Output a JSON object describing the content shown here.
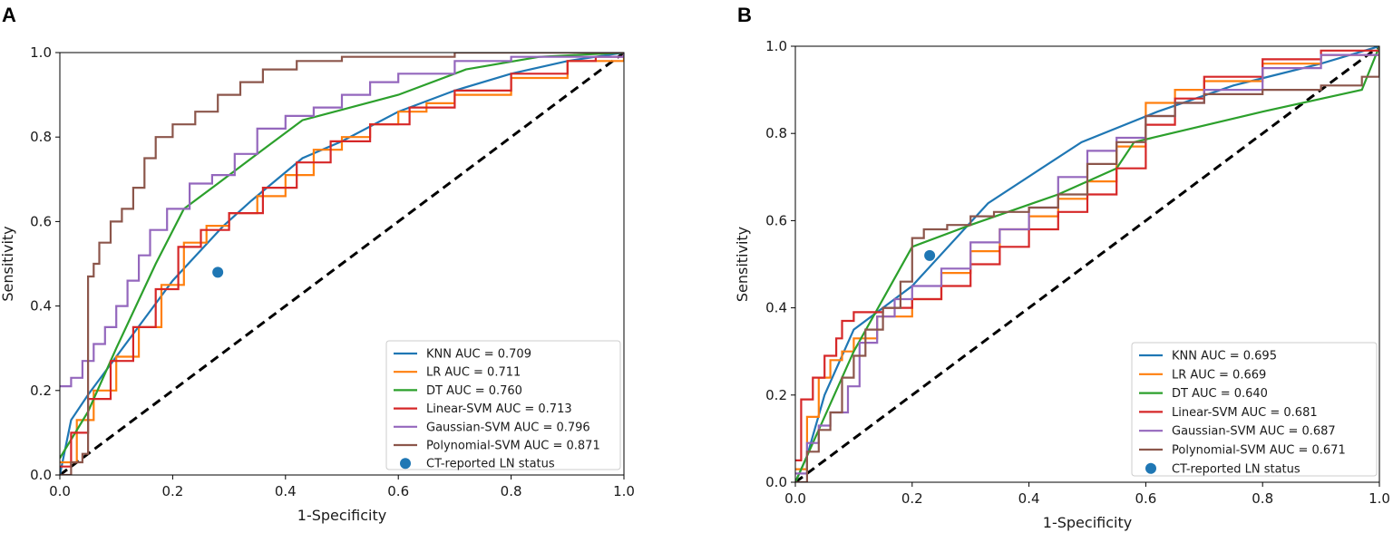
{
  "chart_data": [
    {
      "panel_label": "A",
      "type": "line",
      "xlabel": "1-Specificity",
      "ylabel": "Sensitivity",
      "xlim": [
        0,
        1
      ],
      "ylim": [
        0,
        1
      ],
      "xticks": [
        "0.0",
        "0.2",
        "0.4",
        "0.6",
        "0.8",
        "1.0"
      ],
      "yticks": [
        "0.0",
        "0.2",
        "0.4",
        "0.6",
        "0.8",
        "1.0"
      ],
      "legend_position": "lower-right",
      "series": [
        {
          "name": "KNN AUC = 0.709",
          "color": "#1f77b4",
          "step": false,
          "points": [
            [
              0,
              0
            ],
            [
              0.02,
              0.13
            ],
            [
              0.05,
              0.19
            ],
            [
              0.1,
              0.28
            ],
            [
              0.15,
              0.37
            ],
            [
              0.2,
              0.46
            ],
            [
              0.29,
              0.59
            ],
            [
              0.34,
              0.65
            ],
            [
              0.43,
              0.75
            ],
            [
              0.5,
              0.79
            ],
            [
              0.6,
              0.86
            ],
            [
              0.7,
              0.91
            ],
            [
              0.8,
              0.95
            ],
            [
              0.9,
              0.98
            ],
            [
              1,
              1
            ]
          ]
        },
        {
          "name": "LR AUC = 0.711",
          "color": "#ff7f0e",
          "step": true,
          "points": [
            [
              0,
              0.03
            ],
            [
              0.03,
              0.13
            ],
            [
              0.06,
              0.2
            ],
            [
              0.1,
              0.28
            ],
            [
              0.14,
              0.35
            ],
            [
              0.18,
              0.45
            ],
            [
              0.22,
              0.55
            ],
            [
              0.26,
              0.59
            ],
            [
              0.3,
              0.62
            ],
            [
              0.35,
              0.66
            ],
            [
              0.4,
              0.71
            ],
            [
              0.45,
              0.77
            ],
            [
              0.5,
              0.8
            ],
            [
              0.55,
              0.83
            ],
            [
              0.6,
              0.86
            ],
            [
              0.65,
              0.88
            ],
            [
              0.7,
              0.9
            ],
            [
              0.8,
              0.94
            ],
            [
              0.9,
              0.98
            ],
            [
              1,
              1
            ]
          ]
        },
        {
          "name": "DT AUC = 0.760",
          "color": "#2ca02c",
          "step": false,
          "points": [
            [
              0,
              0.04
            ],
            [
              0.05,
              0.15
            ],
            [
              0.1,
              0.3
            ],
            [
              0.17,
              0.5
            ],
            [
              0.22,
              0.63
            ],
            [
              0.28,
              0.69
            ],
            [
              0.35,
              0.76
            ],
            [
              0.43,
              0.84
            ],
            [
              0.6,
              0.9
            ],
            [
              0.72,
              0.96
            ],
            [
              0.85,
              0.99
            ],
            [
              1,
              1
            ]
          ]
        },
        {
          "name": "Linear-SVM AUC = 0.713",
          "color": "#d62728",
          "step": true,
          "points": [
            [
              0,
              0.02
            ],
            [
              0.02,
              0.1
            ],
            [
              0.05,
              0.18
            ],
            [
              0.09,
              0.27
            ],
            [
              0.13,
              0.35
            ],
            [
              0.17,
              0.44
            ],
            [
              0.21,
              0.54
            ],
            [
              0.25,
              0.58
            ],
            [
              0.3,
              0.62
            ],
            [
              0.36,
              0.68
            ],
            [
              0.42,
              0.74
            ],
            [
              0.48,
              0.79
            ],
            [
              0.55,
              0.83
            ],
            [
              0.62,
              0.87
            ],
            [
              0.7,
              0.91
            ],
            [
              0.8,
              0.95
            ],
            [
              0.9,
              0.98
            ],
            [
              0.95,
              0.99
            ],
            [
              1,
              1
            ]
          ]
        },
        {
          "name": "Gaussian-SVM AUC = 0.796",
          "color": "#9467bd",
          "step": true,
          "points": [
            [
              0,
              0.21
            ],
            [
              0.02,
              0.23
            ],
            [
              0.04,
              0.27
            ],
            [
              0.06,
              0.31
            ],
            [
              0.08,
              0.35
            ],
            [
              0.1,
              0.4
            ],
            [
              0.12,
              0.46
            ],
            [
              0.14,
              0.52
            ],
            [
              0.16,
              0.58
            ],
            [
              0.19,
              0.63
            ],
            [
              0.23,
              0.69
            ],
            [
              0.27,
              0.71
            ],
            [
              0.31,
              0.76
            ],
            [
              0.35,
              0.82
            ],
            [
              0.4,
              0.85
            ],
            [
              0.45,
              0.87
            ],
            [
              0.5,
              0.9
            ],
            [
              0.55,
              0.93
            ],
            [
              0.6,
              0.95
            ],
            [
              0.7,
              0.98
            ],
            [
              0.8,
              0.99
            ],
            [
              1,
              1
            ]
          ]
        },
        {
          "name": "Polynomial-SVM AUC = 0.871",
          "color": "#8c564b",
          "step": true,
          "points": [
            [
              0,
              0
            ],
            [
              0.02,
              0.03
            ],
            [
              0.04,
              0.05
            ],
            [
              0.05,
              0.47
            ],
            [
              0.06,
              0.5
            ],
            [
              0.07,
              0.55
            ],
            [
              0.09,
              0.6
            ],
            [
              0.11,
              0.63
            ],
            [
              0.13,
              0.68
            ],
            [
              0.15,
              0.75
            ],
            [
              0.17,
              0.8
            ],
            [
              0.2,
              0.83
            ],
            [
              0.24,
              0.86
            ],
            [
              0.28,
              0.9
            ],
            [
              0.32,
              0.93
            ],
            [
              0.36,
              0.96
            ],
            [
              0.42,
              0.98
            ],
            [
              0.5,
              0.99
            ],
            [
              0.7,
              1
            ],
            [
              1,
              1
            ]
          ]
        }
      ],
      "marker": {
        "name": "CT-reported LN status",
        "color": "#1f77b4",
        "x": 0.28,
        "y": 0.48
      },
      "diagonal": {
        "style": "dashed",
        "color": "#000000"
      }
    },
    {
      "panel_label": "B",
      "type": "line",
      "xlabel": "1-Specificity",
      "ylabel": "Sensitivity",
      "xlim": [
        0,
        1
      ],
      "ylim": [
        0,
        1
      ],
      "xticks": [
        "0.0",
        "0.2",
        "0.4",
        "0.6",
        "0.8",
        "1.0"
      ],
      "yticks": [
        "0.0",
        "0.2",
        "0.4",
        "0.6",
        "0.8",
        "1.0"
      ],
      "legend_position": "lower-right",
      "series": [
        {
          "name": "KNN AUC = 0.695",
          "color": "#1f77b4",
          "step": false,
          "points": [
            [
              0,
              0
            ],
            [
              0.02,
              0.06
            ],
            [
              0.05,
              0.2
            ],
            [
              0.1,
              0.35
            ],
            [
              0.2,
              0.45
            ],
            [
              0.33,
              0.64
            ],
            [
              0.49,
              0.78
            ],
            [
              0.62,
              0.85
            ],
            [
              0.75,
              0.91
            ],
            [
              0.9,
              0.96
            ],
            [
              1,
              1
            ]
          ]
        },
        {
          "name": "LR AUC = 0.669",
          "color": "#ff7f0e",
          "step": true,
          "points": [
            [
              0,
              0.03
            ],
            [
              0.02,
              0.15
            ],
            [
              0.04,
              0.24
            ],
            [
              0.06,
              0.28
            ],
            [
              0.08,
              0.3
            ],
            [
              0.1,
              0.33
            ],
            [
              0.14,
              0.38
            ],
            [
              0.2,
              0.42
            ],
            [
              0.25,
              0.48
            ],
            [
              0.3,
              0.53
            ],
            [
              0.35,
              0.58
            ],
            [
              0.4,
              0.61
            ],
            [
              0.45,
              0.65
            ],
            [
              0.5,
              0.69
            ],
            [
              0.55,
              0.77
            ],
            [
              0.6,
              0.87
            ],
            [
              0.65,
              0.9
            ],
            [
              0.7,
              0.92
            ],
            [
              0.8,
              0.96
            ],
            [
              0.9,
              0.98
            ],
            [
              1,
              1
            ]
          ]
        },
        {
          "name": "DT AUC = 0.640",
          "color": "#2ca02c",
          "step": false,
          "points": [
            [
              0,
              0
            ],
            [
              0.1,
              0.3
            ],
            [
              0.2,
              0.54
            ],
            [
              0.3,
              0.59
            ],
            [
              0.45,
              0.66
            ],
            [
              0.55,
              0.72
            ],
            [
              0.58,
              0.78
            ],
            [
              0.8,
              0.85
            ],
            [
              0.97,
              0.9
            ],
            [
              1,
              1
            ]
          ]
        },
        {
          "name": "Linear-SVM AUC = 0.681",
          "color": "#d62728",
          "step": true,
          "points": [
            [
              0,
              0.05
            ],
            [
              0.01,
              0.19
            ],
            [
              0.03,
              0.24
            ],
            [
              0.05,
              0.29
            ],
            [
              0.07,
              0.33
            ],
            [
              0.08,
              0.37
            ],
            [
              0.1,
              0.39
            ],
            [
              0.15,
              0.4
            ],
            [
              0.2,
              0.42
            ],
            [
              0.25,
              0.45
            ],
            [
              0.3,
              0.5
            ],
            [
              0.35,
              0.54
            ],
            [
              0.4,
              0.58
            ],
            [
              0.45,
              0.62
            ],
            [
              0.5,
              0.66
            ],
            [
              0.55,
              0.72
            ],
            [
              0.6,
              0.82
            ],
            [
              0.65,
              0.88
            ],
            [
              0.7,
              0.93
            ],
            [
              0.8,
              0.97
            ],
            [
              0.9,
              0.99
            ],
            [
              1,
              1
            ]
          ]
        },
        {
          "name": "Gaussian-SVM AUC = 0.687",
          "color": "#9467bd",
          "step": true,
          "points": [
            [
              0,
              0.02
            ],
            [
              0.02,
              0.09
            ],
            [
              0.04,
              0.13
            ],
            [
              0.06,
              0.16
            ],
            [
              0.09,
              0.22
            ],
            [
              0.11,
              0.32
            ],
            [
              0.14,
              0.38
            ],
            [
              0.17,
              0.42
            ],
            [
              0.2,
              0.45
            ],
            [
              0.25,
              0.49
            ],
            [
              0.3,
              0.55
            ],
            [
              0.35,
              0.58
            ],
            [
              0.4,
              0.63
            ],
            [
              0.45,
              0.7
            ],
            [
              0.5,
              0.76
            ],
            [
              0.55,
              0.79
            ],
            [
              0.6,
              0.84
            ],
            [
              0.65,
              0.87
            ],
            [
              0.7,
              0.9
            ],
            [
              0.8,
              0.95
            ],
            [
              0.9,
              0.98
            ],
            [
              1,
              1
            ]
          ]
        },
        {
          "name": "Polynomial-SVM AUC = 0.671",
          "color": "#8c564b",
          "step": true,
          "points": [
            [
              0,
              0
            ],
            [
              0.02,
              0.07
            ],
            [
              0.04,
              0.12
            ],
            [
              0.06,
              0.16
            ],
            [
              0.08,
              0.24
            ],
            [
              0.1,
              0.29
            ],
            [
              0.12,
              0.35
            ],
            [
              0.15,
              0.4
            ],
            [
              0.18,
              0.46
            ],
            [
              0.2,
              0.56
            ],
            [
              0.22,
              0.58
            ],
            [
              0.26,
              0.59
            ],
            [
              0.3,
              0.61
            ],
            [
              0.34,
              0.62
            ],
            [
              0.4,
              0.63
            ],
            [
              0.45,
              0.66
            ],
            [
              0.5,
              0.73
            ],
            [
              0.55,
              0.78
            ],
            [
              0.6,
              0.84
            ],
            [
              0.65,
              0.87
            ],
            [
              0.7,
              0.89
            ],
            [
              0.8,
              0.9
            ],
            [
              0.9,
              0.91
            ],
            [
              0.97,
              0.93
            ],
            [
              1,
              1
            ]
          ]
        }
      ],
      "marker": {
        "name": "CT-reported LN status",
        "color": "#1f77b4",
        "x": 0.23,
        "y": 0.52
      },
      "diagonal": {
        "style": "dashed",
        "color": "#000000"
      }
    }
  ]
}
